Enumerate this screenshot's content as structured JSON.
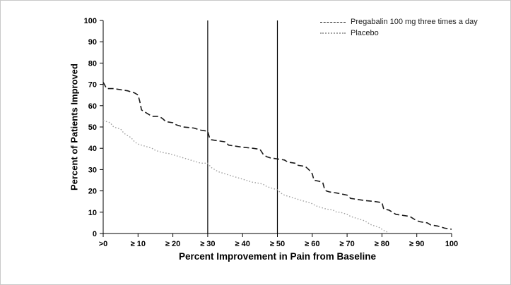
{
  "figure": {
    "background": "#ffffff",
    "border_color": "#c9c9c9"
  },
  "chart_data": {
    "type": "line",
    "title": "",
    "xlabel": "Percent Improvement in Pain from Baseline",
    "ylabel": "Percent of Patients Improved",
    "xlim": [
      0,
      100
    ],
    "ylim": [
      0,
      100
    ],
    "grid": false,
    "legend_position": "top-right",
    "x_ticks": [
      {
        "value": 0,
        "label": ">0"
      },
      {
        "value": 10,
        "label": "≥ 10"
      },
      {
        "value": 20,
        "label": "≥ 20"
      },
      {
        "value": 30,
        "label": "≥ 30"
      },
      {
        "value": 40,
        "label": "≥ 40"
      },
      {
        "value": 50,
        "label": "≥ 50"
      },
      {
        "value": 60,
        "label": "≥ 60"
      },
      {
        "value": 70,
        "label": "≥ 70"
      },
      {
        "value": 80,
        "label": "≥ 80"
      },
      {
        "value": 90,
        "label": "≥ 90"
      },
      {
        "value": 100,
        "label": "100"
      }
    ],
    "y_ticks": [
      {
        "value": 0,
        "label": "0"
      },
      {
        "value": 10,
        "label": "10"
      },
      {
        "value": 20,
        "label": "20"
      },
      {
        "value": 30,
        "label": "30"
      },
      {
        "value": 40,
        "label": "40"
      },
      {
        "value": 50,
        "label": "50"
      },
      {
        "value": 60,
        "label": "60"
      },
      {
        "value": 70,
        "label": "70"
      },
      {
        "value": 80,
        "label": "80"
      },
      {
        "value": 90,
        "label": "90"
      },
      {
        "value": 100,
        "label": "100"
      }
    ],
    "reference_lines_x": [
      30,
      50
    ],
    "series": [
      {
        "name": "Pregabalin 100 mg three times a day",
        "color": "#1a1a1a",
        "style": "dashed",
        "points": [
          [
            0,
            71
          ],
          [
            1,
            68
          ],
          [
            3,
            68
          ],
          [
            5,
            67.5
          ],
          [
            7,
            67
          ],
          [
            9,
            66
          ],
          [
            10,
            65
          ],
          [
            10.5,
            62
          ],
          [
            11,
            58
          ],
          [
            12,
            57
          ],
          [
            13,
            56
          ],
          [
            14,
            55
          ],
          [
            16,
            55
          ],
          [
            17,
            54
          ],
          [
            18,
            52.5
          ],
          [
            20,
            52
          ],
          [
            21,
            51
          ],
          [
            22,
            50.5
          ],
          [
            23,
            50
          ],
          [
            26,
            49.5
          ],
          [
            28,
            48.5
          ],
          [
            30,
            48
          ],
          [
            30.5,
            45
          ],
          [
            31,
            44
          ],
          [
            33,
            43.5
          ],
          [
            35,
            43
          ],
          [
            36,
            41.5
          ],
          [
            38,
            41
          ],
          [
            40,
            40.5
          ],
          [
            43,
            40
          ],
          [
            45,
            39.5
          ],
          [
            46,
            37
          ],
          [
            47,
            36
          ],
          [
            48,
            35.5
          ],
          [
            50,
            35
          ],
          [
            52,
            34.5
          ],
          [
            53,
            33.5
          ],
          [
            55,
            33
          ],
          [
            56,
            32
          ],
          [
            58,
            31.5
          ],
          [
            59,
            30
          ],
          [
            60,
            28
          ],
          [
            60.5,
            25
          ],
          [
            62,
            24.5
          ],
          [
            63,
            24
          ],
          [
            63.5,
            21
          ],
          [
            64,
            20
          ],
          [
            65,
            19.5
          ],
          [
            67,
            19
          ],
          [
            70,
            18
          ],
          [
            71,
            16.5
          ],
          [
            73,
            16
          ],
          [
            75,
            15.5
          ],
          [
            78,
            15
          ],
          [
            80,
            14.5
          ],
          [
            80.5,
            11.5
          ],
          [
            82,
            11
          ],
          [
            83,
            10
          ],
          [
            84,
            9
          ],
          [
            86,
            8.5
          ],
          [
            88,
            8
          ],
          [
            89,
            7
          ],
          [
            90,
            6
          ],
          [
            91,
            5.5
          ],
          [
            93,
            5
          ],
          [
            94,
            4
          ],
          [
            96,
            3.5
          ],
          [
            97,
            3
          ],
          [
            98,
            2.5
          ],
          [
            100,
            2
          ]
        ]
      },
      {
        "name": "Placebo",
        "color": "#9e9e9e",
        "style": "dotted",
        "points": [
          [
            0,
            53
          ],
          [
            1,
            52.5
          ],
          [
            2,
            52
          ],
          [
            3,
            50
          ],
          [
            4,
            49.5
          ],
          [
            5,
            49
          ],
          [
            6,
            47
          ],
          [
            7,
            46
          ],
          [
            8,
            45
          ],
          [
            9,
            43
          ],
          [
            10,
            42
          ],
          [
            11,
            41.5
          ],
          [
            12,
            41
          ],
          [
            13,
            40.5
          ],
          [
            14,
            40
          ],
          [
            15,
            39
          ],
          [
            16,
            38.5
          ],
          [
            17,
            38
          ],
          [
            19,
            37.5
          ],
          [
            20,
            37
          ],
          [
            22,
            36
          ],
          [
            24,
            35
          ],
          [
            26,
            34
          ],
          [
            27,
            33.5
          ],
          [
            28,
            33
          ],
          [
            30,
            33
          ],
          [
            31,
            31
          ],
          [
            32,
            30
          ],
          [
            33,
            29
          ],
          [
            34,
            28.5
          ],
          [
            35,
            28
          ],
          [
            37,
            27
          ],
          [
            38,
            26.5
          ],
          [
            39,
            26
          ],
          [
            41,
            25
          ],
          [
            43,
            24
          ],
          [
            45,
            23.5
          ],
          [
            46,
            23
          ],
          [
            47,
            22
          ],
          [
            49,
            21
          ],
          [
            50,
            20.5
          ],
          [
            51,
            19
          ],
          [
            52,
            18
          ],
          [
            54,
            17
          ],
          [
            56,
            16
          ],
          [
            58,
            15
          ],
          [
            60,
            14
          ],
          [
            61,
            13
          ],
          [
            63,
            12
          ],
          [
            64,
            11.5
          ],
          [
            66,
            11
          ],
          [
            67,
            10
          ],
          [
            68,
            10
          ],
          [
            70,
            9
          ],
          [
            71,
            8
          ],
          [
            73,
            7
          ],
          [
            74,
            6.5
          ],
          [
            75,
            6
          ],
          [
            76,
            5
          ],
          [
            77,
            4
          ],
          [
            78,
            3.5
          ],
          [
            79,
            3
          ],
          [
            80,
            2
          ],
          [
            81,
            1
          ],
          [
            82,
            0.5
          ]
        ]
      }
    ]
  }
}
